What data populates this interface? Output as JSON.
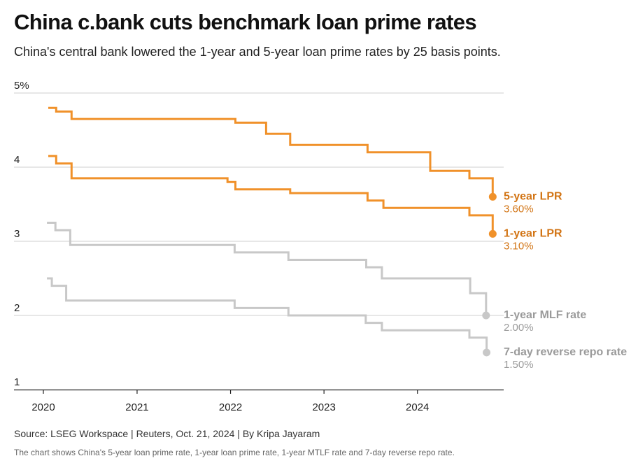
{
  "chart_data": {
    "type": "line",
    "title": "China c.bank cuts benchmark loan prime rates",
    "subtitle": "China's central bank lowered the 1-year and 5-year loan prime rates by 25 basis points.",
    "source": "Source: LSEG Workspace | Reuters, Oct. 21, 2024 | By Kripa Jayaram",
    "footnote": "The chart shows China's 5-year loan prime rate, 1-year loan prime rate, 1-year MTLF rate and 7-day reverse repo rate.",
    "xlabel": "",
    "ylabel": "",
    "xlim": [
      "2020-01-01",
      "2024-10-31"
    ],
    "ylim": [
      1,
      5
    ],
    "y_ticks": [
      {
        "value": 5,
        "label": "5%"
      },
      {
        "value": 4,
        "label": "4"
      },
      {
        "value": 3,
        "label": "3"
      },
      {
        "value": 2,
        "label": "2"
      },
      {
        "value": 1,
        "label": "1"
      }
    ],
    "x_ticks": [
      {
        "value": "2020-01-01",
        "label": "2020"
      },
      {
        "value": "2021-01-01",
        "label": "2021"
      },
      {
        "value": "2022-01-01",
        "label": "2022"
      },
      {
        "value": "2023-01-01",
        "label": "2023"
      },
      {
        "value": "2024-01-01",
        "label": "2024"
      }
    ],
    "grid": true,
    "series": [
      {
        "key": "lpr5",
        "name": "5-year LPR",
        "end_label": "3.60%",
        "color": "#f0912a",
        "label_color": "#d27414",
        "style": "step",
        "points": [
          {
            "x": "2020-01-20",
            "y": 4.8
          },
          {
            "x": "2020-02-20",
            "y": 4.75
          },
          {
            "x": "2020-04-20",
            "y": 4.65
          },
          {
            "x": "2022-01-20",
            "y": 4.6
          },
          {
            "x": "2022-05-20",
            "y": 4.45
          },
          {
            "x": "2022-08-22",
            "y": 4.3
          },
          {
            "x": "2023-06-20",
            "y": 4.2
          },
          {
            "x": "2024-02-20",
            "y": 3.95
          },
          {
            "x": "2024-07-22",
            "y": 3.85
          },
          {
            "x": "2024-10-21",
            "y": 3.6
          }
        ]
      },
      {
        "key": "lpr1",
        "name": "1-year LPR",
        "end_label": "3.10%",
        "color": "#f0912a",
        "label_color": "#d27414",
        "style": "step",
        "points": [
          {
            "x": "2020-01-20",
            "y": 4.15
          },
          {
            "x": "2020-02-20",
            "y": 4.05
          },
          {
            "x": "2020-04-20",
            "y": 3.85
          },
          {
            "x": "2021-12-20",
            "y": 3.8
          },
          {
            "x": "2022-01-20",
            "y": 3.7
          },
          {
            "x": "2022-08-22",
            "y": 3.65
          },
          {
            "x": "2023-06-20",
            "y": 3.55
          },
          {
            "x": "2023-08-21",
            "y": 3.45
          },
          {
            "x": "2024-07-22",
            "y": 3.35
          },
          {
            "x": "2024-10-21",
            "y": 3.1
          }
        ]
      },
      {
        "key": "mlf",
        "name": "1-year MLF rate",
        "end_label": "2.00%",
        "color": "#c8c8c8",
        "label_color": "#9a9a9a",
        "style": "step",
        "points": [
          {
            "x": "2020-01-15",
            "y": 3.25
          },
          {
            "x": "2020-02-17",
            "y": 3.15
          },
          {
            "x": "2020-04-15",
            "y": 2.95
          },
          {
            "x": "2022-01-17",
            "y": 2.85
          },
          {
            "x": "2022-08-15",
            "y": 2.75
          },
          {
            "x": "2023-06-15",
            "y": 2.65
          },
          {
            "x": "2023-08-15",
            "y": 2.5
          },
          {
            "x": "2024-07-25",
            "y": 2.3
          },
          {
            "x": "2024-09-25",
            "y": 2.0
          }
        ]
      },
      {
        "key": "repo",
        "name": "7-day reverse repo rate",
        "end_label": "1.50%",
        "color": "#c8c8c8",
        "label_color": "#9a9a9a",
        "style": "step",
        "points": [
          {
            "x": "2020-01-15",
            "y": 2.5
          },
          {
            "x": "2020-02-03",
            "y": 2.4
          },
          {
            "x": "2020-03-30",
            "y": 2.2
          },
          {
            "x": "2022-01-17",
            "y": 2.1
          },
          {
            "x": "2022-08-15",
            "y": 2.0
          },
          {
            "x": "2023-06-13",
            "y": 1.9
          },
          {
            "x": "2023-08-15",
            "y": 1.8
          },
          {
            "x": "2024-07-22",
            "y": 1.7
          },
          {
            "x": "2024-09-27",
            "y": 1.5
          }
        ]
      }
    ]
  }
}
